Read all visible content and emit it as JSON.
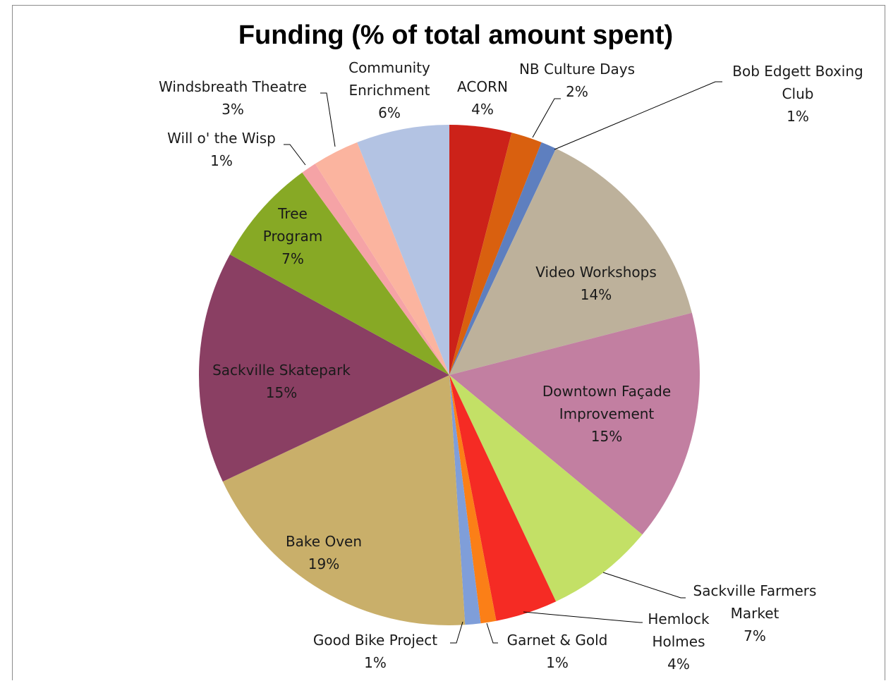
{
  "chart_data": {
    "type": "pie",
    "title": "Funding (% of total amount spent)",
    "slices": [
      {
        "label": "ACORN",
        "value": 4,
        "pct_label": "4%",
        "color": "#CC2219"
      },
      {
        "label": "NB Culture Days",
        "value": 2,
        "pct_label": "2%",
        "color": "#D9600F"
      },
      {
        "label": "Bob Edgett Boxing Club",
        "value": 1,
        "pct_label": "1%",
        "color": "#5E7FBF"
      },
      {
        "label": "Video Workshops",
        "value": 14,
        "pct_label": "14%",
        "color": "#BDB19B"
      },
      {
        "label": "Downtown Façade Improvement",
        "value": 15,
        "pct_label": "15%",
        "color": "#C27FA1"
      },
      {
        "label": "Sackville Farmers Market",
        "value": 7,
        "pct_label": "7%",
        "color": "#C3E066"
      },
      {
        "label": "Hemlock Holmes",
        "value": 4,
        "pct_label": "4%",
        "color": "#F52B24"
      },
      {
        "label": "Garnet & Gold",
        "value": 1,
        "pct_label": "1%",
        "color": "#FB7F17"
      },
      {
        "label": "Good Bike Project",
        "value": 1,
        "pct_label": "1%",
        "color": "#7F9ED9"
      },
      {
        "label": "Bake Oven",
        "value": 19,
        "pct_label": "19%",
        "color": "#C9AF6A"
      },
      {
        "label": "Sackville Skatepark",
        "value": 15,
        "pct_label": "15%",
        "color": "#8A3F63"
      },
      {
        "label": "Tree Program",
        "value": 7,
        "pct_label": "7%",
        "color": "#87A925"
      },
      {
        "label": "Will o' the Wisp",
        "value": 1,
        "pct_label": "1%",
        "color": "#F5A3A6"
      },
      {
        "label": "Windsbreath Theatre",
        "value": 3,
        "pct_label": "3%",
        "color": "#FBB49F"
      },
      {
        "label": "Community Enrichment",
        "value": 6,
        "pct_label": "6%",
        "color": "#B3C3E3"
      }
    ],
    "label_lines": [
      [
        "ACORN",
        "4%"
      ],
      [
        "NB Culture Days",
        "2%"
      ],
      [
        "Bob Edgett Boxing",
        "Club",
        "1%"
      ],
      [
        "Video Workshops",
        "14%"
      ],
      [
        "Downtown Façade",
        "Improvement",
        "15%"
      ],
      [
        "Sackville Farmers",
        "Market",
        "7%"
      ],
      [
        "Hemlock",
        "Holmes",
        "4%"
      ],
      [
        "Garnet & Gold",
        "1%"
      ],
      [
        "Good Bike Project",
        "1%"
      ],
      [
        "Bake Oven",
        "19%"
      ],
      [
        "Sackville Skatepark",
        "15%"
      ],
      [
        "Tree",
        "Program",
        "7%"
      ],
      [
        "Will o' the Wisp",
        "1%"
      ],
      [
        "Windsbreath Theatre",
        "3%"
      ],
      [
        "Community",
        "Enrichment",
        "6%"
      ]
    ]
  }
}
